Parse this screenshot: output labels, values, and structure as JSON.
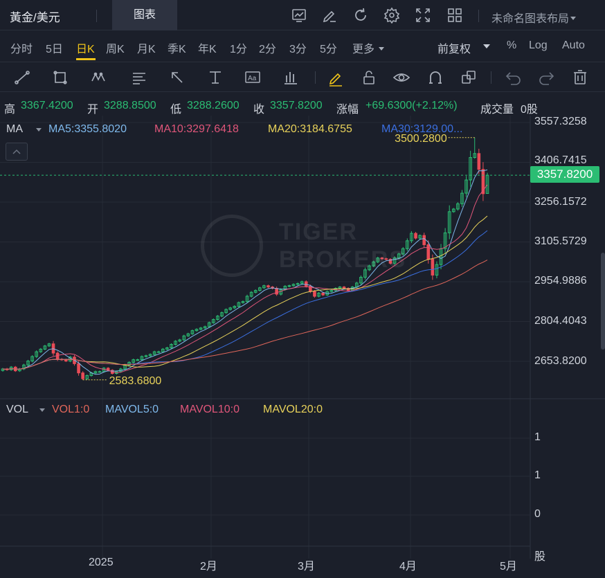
{
  "header": {
    "symbol": "黃金/美元",
    "tab_chart": "图表",
    "layout_name": "未命名图表布局",
    "icons": [
      "chart-type-icon",
      "draw-icon",
      "refresh-icon",
      "settings-icon",
      "fullscreen-icon",
      "grid-layout-icon"
    ]
  },
  "periods": {
    "items": [
      "分时",
      "5日",
      "日K",
      "周K",
      "月K",
      "季K",
      "年K",
      "1分",
      "2分",
      "3分",
      "5分",
      "更多"
    ],
    "active": "日K",
    "adjust": "前复权",
    "percent": "%",
    "log": "Log",
    "auto": "Auto"
  },
  "toolbar": {
    "icons": [
      "trend-line-icon",
      "rectangle-icon",
      "pattern-icon",
      "text-list-icon",
      "arrow-icon",
      "price-range-icon",
      "text-tool-icon",
      "bar-indicator-icon",
      "pencil-icon",
      "lock-icon",
      "eye-icon",
      "magnet-icon",
      "layers-icon",
      "undo-icon",
      "redo-icon",
      "trash-icon"
    ]
  },
  "ohlc": {
    "high_label": "高",
    "high": "3367.4200",
    "open_label": "开",
    "open": "3288.8500",
    "low_label": "低",
    "low": "3288.2600",
    "close_label": "收",
    "close": "3357.8200",
    "change_label": "涨幅",
    "change": "+69.6300(+2.12%)",
    "volume_label": "成交量",
    "volume": "0股"
  },
  "ma_legend": {
    "name": "MA",
    "ma5": "MA5:3355.8020",
    "ma10": "MA10:3297.6418",
    "ma20": "MA20:3184.6755",
    "ma30": "MA30:3129.00..."
  },
  "vol_legend": {
    "name": "VOL",
    "vol1": "VOL1:0",
    "mavol5": "MAVOL5:0",
    "mavol10": "MAVOL10:0",
    "mavol20": "MAVOL20:0"
  },
  "price_axis": [
    "3557.3258",
    "3406.7415",
    "3256.1572",
    "3105.5729",
    "2954.9886",
    "2804.4043",
    "2653.8200"
  ],
  "last_price": "3357.8200",
  "annotations": {
    "max": "3500.2800",
    "min": "2583.6800"
  },
  "volume_axis": [
    "1",
    "1",
    "0",
    "股"
  ],
  "time_axis": [
    "2025",
    "2月",
    "3月",
    "4月",
    "5月"
  ],
  "watermark": {
    "line1": "TIGER",
    "line2": "BROKERS"
  },
  "colors": {
    "up": "#2bbd73",
    "down": "#e84c57",
    "ma5": "#7fb9ec",
    "ma10": "#e0567a",
    "ma20": "#e8d25a",
    "ma30": "#3b6fe0",
    "ma60": "#e0665a",
    "accent": "#f0c419"
  },
  "chart_data": {
    "type": "candlestick",
    "x_ticks": [
      "2025",
      "2月",
      "3月",
      "4月",
      "5月"
    ],
    "y_ticks": [
      3557.3258,
      3406.7415,
      3256.1572,
      3105.5729,
      2954.9886,
      2804.4043,
      2653.82
    ],
    "ylim": [
      2580,
      3560
    ],
    "max_point": 3500.28,
    "min_point": 2583.68,
    "last_close": 3357.82,
    "closes": [
      2625,
      2622,
      2632,
      2618,
      2625,
      2640,
      2655,
      2672,
      2690,
      2700,
      2712,
      2720,
      2685,
      2662,
      2660,
      2655,
      2670,
      2645,
      2610,
      2588,
      2600,
      2610,
      2615,
      2615,
      2628,
      2620,
      2608,
      2615,
      2625,
      2640,
      2650,
      2660,
      2660,
      2672,
      2675,
      2680,
      2690,
      2690,
      2700,
      2705,
      2718,
      2730,
      2735,
      2750,
      2758,
      2770,
      2775,
      2780,
      2785,
      2800,
      2812,
      2825,
      2838,
      2850,
      2856,
      2862,
      2876,
      2880,
      2900,
      2915,
      2922,
      2932,
      2940,
      2935,
      2930,
      2908,
      2925,
      2938,
      2940,
      2945,
      2948,
      2955,
      2938,
      2918,
      2900,
      2912,
      2905,
      2918,
      2922,
      2930,
      2935,
      2930,
      2922,
      2935,
      2950,
      2972,
      3000,
      3015,
      3030,
      3045,
      3042,
      3040,
      3025,
      3045,
      3060,
      3080,
      3110,
      3138,
      3120,
      3130,
      3095,
      3040,
      2980,
      3020,
      3080,
      3140,
      3220,
      3230,
      3250,
      3290,
      3340,
      3425,
      3440,
      3380,
      3288,
      3358
    ]
  }
}
